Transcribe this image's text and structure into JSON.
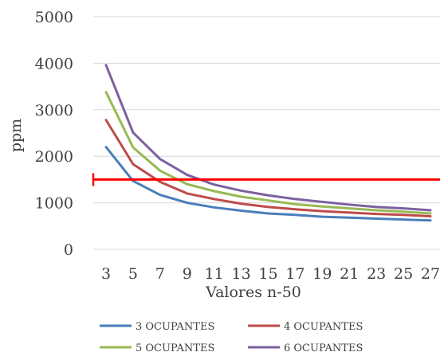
{
  "chart_data": {
    "type": "line",
    "title": "",
    "xlabel": "Valores n-50",
    "ylabel": "ppm",
    "categories": [
      "3",
      "5",
      "7",
      "9",
      "11",
      "13",
      "15",
      "17",
      "19",
      "21",
      "23",
      "25",
      "27"
    ],
    "ylim": [
      0,
      5000
    ],
    "yticks": [
      "0",
      "1000",
      "2000",
      "3000",
      "4000",
      "5000"
    ],
    "grid": true,
    "legend_position": "bottom",
    "series": [
      {
        "name": "3 OCUPANTES",
        "color": "#4a7ebb",
        "values": [
          2200,
          1470,
          1170,
          1000,
          900,
          830,
          770,
          740,
          700,
          680,
          660,
          640,
          620
        ]
      },
      {
        "name": "4 OCUPANTES",
        "color": "#be4b48",
        "values": [
          2780,
          1830,
          1450,
          1200,
          1080,
          980,
          910,
          860,
          820,
          790,
          760,
          740,
          710
        ]
      },
      {
        "name": "5 OCUPANTES",
        "color": "#98b954",
        "values": [
          3380,
          2190,
          1690,
          1400,
          1250,
          1130,
          1050,
          970,
          920,
          880,
          840,
          810,
          770
        ]
      },
      {
        "name": "6 OCUPANTES",
        "color": "#7d60a0",
        "values": [
          3960,
          2510,
          1940,
          1600,
          1390,
          1260,
          1160,
          1080,
          1020,
          960,
          910,
          880,
          840
        ]
      }
    ],
    "reference_line": {
      "value": 1500,
      "color": "#ff0000"
    }
  }
}
